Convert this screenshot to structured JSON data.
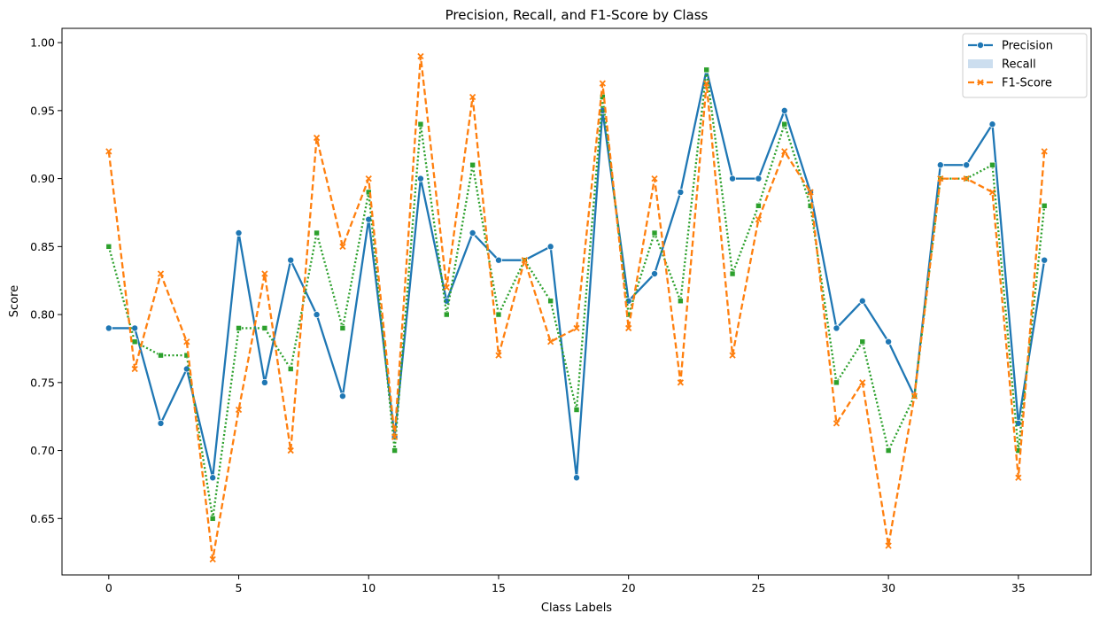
{
  "chart_data": {
    "type": "line",
    "title": "Precision, Recall, and F1-Score by Class",
    "xlabel": "Class Labels",
    "ylabel": "Score",
    "xlim": [
      -1.8,
      37.8
    ],
    "ylim": [
      0.6085,
      1.0105
    ],
    "xticks": [
      0,
      5,
      10,
      15,
      20,
      25,
      30,
      35
    ],
    "yticks": [
      0.65,
      0.7,
      0.75,
      0.8,
      0.85,
      0.9,
      0.95,
      1.0
    ],
    "grid": false,
    "legend_position": "top-right",
    "x": [
      0,
      1,
      2,
      3,
      4,
      5,
      6,
      7,
      8,
      9,
      10,
      11,
      12,
      13,
      14,
      15,
      16,
      17,
      18,
      19,
      20,
      21,
      22,
      23,
      24,
      25,
      26,
      27,
      28,
      29,
      30,
      31,
      32,
      33,
      34,
      35,
      36
    ],
    "series": [
      {
        "name": "Precision",
        "color": "#1f77b4",
        "dash": "solid",
        "marker": "circle",
        "values": [
          0.79,
          0.79,
          0.72,
          0.76,
          0.68,
          0.86,
          0.75,
          0.84,
          0.8,
          0.74,
          0.87,
          0.71,
          0.9,
          0.81,
          0.86,
          0.84,
          0.84,
          0.85,
          0.68,
          0.95,
          0.81,
          0.83,
          0.89,
          0.98,
          0.9,
          0.9,
          0.95,
          0.89,
          0.79,
          0.81,
          0.78,
          0.74,
          0.91,
          0.91,
          0.94,
          0.72,
          0.84
        ]
      },
      {
        "name": "Recall",
        "color": "#2ca02c",
        "dash": "dotted",
        "marker": "square",
        "values": [
          0.85,
          0.78,
          0.77,
          0.77,
          0.65,
          0.79,
          0.79,
          0.76,
          0.86,
          0.79,
          0.89,
          0.7,
          0.94,
          0.8,
          0.91,
          0.8,
          0.84,
          0.81,
          0.73,
          0.96,
          0.8,
          0.86,
          0.81,
          0.98,
          0.83,
          0.88,
          0.94,
          0.88,
          0.75,
          0.78,
          0.7,
          0.74,
          0.9,
          0.9,
          0.91,
          0.7,
          0.88
        ]
      },
      {
        "name": "F1-Score",
        "color": "#ff7f0e",
        "dash": "dashed",
        "marker": "x",
        "values": [
          0.92,
          0.76,
          0.83,
          0.78,
          0.62,
          0.73,
          0.83,
          0.7,
          0.93,
          0.85,
          0.9,
          0.71,
          0.99,
          0.82,
          0.96,
          0.77,
          0.84,
          0.78,
          0.79,
          0.97,
          0.79,
          0.9,
          0.75,
          0.97,
          0.77,
          0.87,
          0.92,
          0.89,
          0.72,
          0.75,
          0.63,
          0.74,
          0.9,
          0.9,
          0.89,
          0.68,
          0.92
        ]
      }
    ],
    "legend": [
      {
        "label": "Precision",
        "style": "line-circle",
        "color": "#1f77b4"
      },
      {
        "label": "Recall",
        "style": "patch",
        "color": "#aac8e4"
      },
      {
        "label": "F1-Score",
        "style": "dashed-x",
        "color": "#ff7f0e"
      }
    ]
  }
}
